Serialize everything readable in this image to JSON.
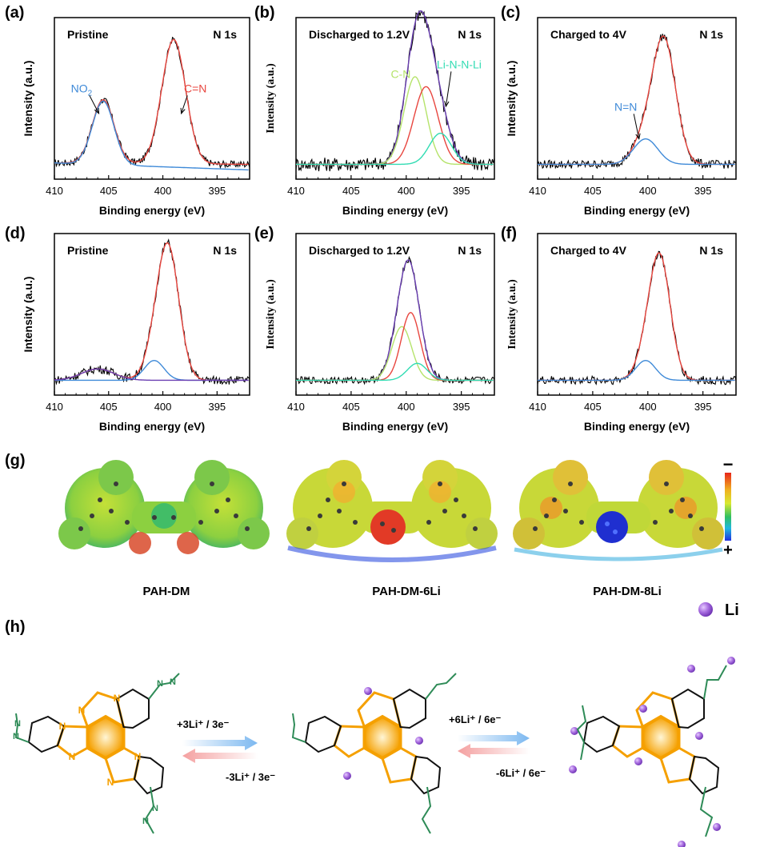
{
  "panel_labels": [
    "(a)",
    "(b)",
    "(c)",
    "(d)",
    "(e)",
    "(f)",
    "(g)",
    "(h)"
  ],
  "shared_axes": {
    "xlabel": "Binding energy (eV)",
    "ylabel": "Intensity (a.u.)",
    "xticks": [
      410,
      405,
      400,
      395
    ],
    "xlim": [
      410,
      392
    ]
  },
  "colors": {
    "raw": "#000000",
    "envelope": "#6a3fb2",
    "red": "#e8463f",
    "blue": "#3f8ad8",
    "green": "#b5e36a",
    "cyan": "#32dcb3",
    "bg": "#3a3a3a",
    "nitrogen": "#2e8b57",
    "ring": "#f5a000",
    "li": "#a86de0"
  },
  "chart_data": [
    {
      "type": "line",
      "panel": "(a)",
      "title": "Pristine",
      "tag": "N 1s",
      "xlabel": "Binding energy (eV)",
      "ylabel": "Intensity (a.u.)",
      "xlim": [
        410,
        392
      ],
      "series": [
        {
          "name": "raw",
          "kind": "noisy",
          "baseline": 0.05,
          "baseline_end": 0.04,
          "noise": 0.025,
          "peaks": [
            {
              "center": 405.5,
              "amp": 0.45,
              "sigma": 1.0
            },
            {
              "center": 399.0,
              "amp": 0.88,
              "sigma": 1.1
            }
          ]
        },
        {
          "name": "fit-total",
          "color": "red",
          "baseline": 0.05,
          "baseline_end": 0.04,
          "peaks": [
            {
              "center": 405.5,
              "amp": 0.45,
              "sigma": 1.0
            },
            {
              "center": 399.0,
              "amp": 0.88,
              "sigma": 1.1
            }
          ]
        },
        {
          "name": "NO2",
          "color": "blue",
          "baseline": 0.05,
          "baseline_end": 0.0,
          "peaks": [
            {
              "center": 405.5,
              "amp": 0.45,
              "sigma": 1.0
            }
          ]
        }
      ],
      "annotations": [
        {
          "text": "NO",
          "sub": "2",
          "x": 407.5,
          "y": 0.55,
          "color": "blue",
          "arrow_to": [
            405.9,
            0.4
          ]
        },
        {
          "text": "C=N",
          "x": 397.0,
          "y": 0.55,
          "color": "red",
          "arrow_to": [
            398.3,
            0.4
          ]
        }
      ]
    },
    {
      "type": "line",
      "panel": "(b)",
      "title": "Discharged to 1.2V",
      "tag": "N 1s",
      "xlabel": "Binding energy (eV)",
      "ylabel": "Intensity (a.u.)",
      "xlim": [
        410,
        392
      ],
      "series": [
        {
          "name": "raw",
          "kind": "noisy",
          "baseline": 0.04,
          "noise": 0.05,
          "peaks": [
            {
              "center": 399.2,
              "amp": 0.62,
              "sigma": 1.0
            },
            {
              "center": 398.2,
              "amp": 0.55,
              "sigma": 1.1
            },
            {
              "center": 396.9,
              "amp": 0.22,
              "sigma": 1.0
            }
          ]
        },
        {
          "name": "fit-total",
          "color": "envelope",
          "baseline": 0.04,
          "peaks": [
            {
              "center": 399.2,
              "amp": 0.62,
              "sigma": 1.0
            },
            {
              "center": 398.2,
              "amp": 0.55,
              "sigma": 1.1
            },
            {
              "center": 396.9,
              "amp": 0.22,
              "sigma": 1.0
            }
          ]
        },
        {
          "name": "C-N",
          "color": "green",
          "baseline": 0.04,
          "peaks": [
            {
              "center": 399.2,
              "amp": 0.62,
              "sigma": 1.0
            }
          ]
        },
        {
          "name": "peak-red",
          "color": "red",
          "baseline": 0.04,
          "peaks": [
            {
              "center": 398.2,
              "amp": 0.55,
              "sigma": 1.1
            }
          ]
        },
        {
          "name": "Li-N-N-Li",
          "color": "cyan",
          "baseline": 0.04,
          "peaks": [
            {
              "center": 396.9,
              "amp": 0.22,
              "sigma": 1.0
            }
          ]
        }
      ],
      "annotations": [
        {
          "text": "C-N",
          "x": 400.5,
          "y": 0.65,
          "color": "green"
        },
        {
          "text": "Li-N-N-Li",
          "x": 395.2,
          "y": 0.72,
          "color": "cyan",
          "arrow_to": [
            396.4,
            0.45
          ]
        }
      ]
    },
    {
      "type": "line",
      "panel": "(c)",
      "title": "Charged to 4V",
      "tag": "N 1s",
      "xlabel": "Binding energy (eV)",
      "ylabel": "Intensity (a.u.)",
      "xlim": [
        410,
        392
      ],
      "series": [
        {
          "name": "raw",
          "kind": "noisy",
          "baseline": 0.04,
          "noise": 0.03,
          "peaks": [
            {
              "center": 398.5,
              "amp": 0.85,
              "sigma": 1.05
            },
            {
              "center": 400.2,
              "amp": 0.18,
              "sigma": 1.1
            }
          ]
        },
        {
          "name": "fit-total",
          "color": "red",
          "baseline": 0.04,
          "peaks": [
            {
              "center": 398.5,
              "amp": 0.85,
              "sigma": 1.05
            },
            {
              "center": 400.2,
              "amp": 0.18,
              "sigma": 1.1
            }
          ]
        },
        {
          "name": "N=N",
          "color": "blue",
          "baseline": 0.04,
          "peaks": [
            {
              "center": 400.2,
              "amp": 0.18,
              "sigma": 1.1
            }
          ]
        }
      ],
      "annotations": [
        {
          "text": "N=N",
          "x": 402.0,
          "y": 0.42,
          "color": "blue",
          "arrow_to": [
            400.8,
            0.22
          ]
        }
      ]
    },
    {
      "type": "line",
      "panel": "(d)",
      "title": "Pristine",
      "tag": "N 1s",
      "xlabel": "Binding energy (eV)",
      "ylabel": "Intensity (a.u.)",
      "xlim": [
        410,
        392
      ],
      "series": [
        {
          "name": "raw",
          "kind": "noisy",
          "baseline": 0.04,
          "noise": 0.03,
          "peaks": [
            {
              "center": 399.5,
              "amp": 0.92,
              "sigma": 1.0
            },
            {
              "center": 400.8,
              "amp": 0.14,
              "sigma": 0.9
            },
            {
              "center": 406.0,
              "amp": 0.08,
              "sigma": 1.5
            }
          ]
        },
        {
          "name": "fit-total",
          "color": "red",
          "baseline": 0.04,
          "peaks": [
            {
              "center": 399.5,
              "amp": 0.92,
              "sigma": 1.0
            },
            {
              "center": 400.8,
              "amp": 0.14,
              "sigma": 0.9
            },
            {
              "center": 406.0,
              "amp": 0.08,
              "sigma": 1.5
            }
          ]
        },
        {
          "name": "peak-cyan",
          "color": "blue",
          "baseline": 0.04,
          "peaks": [
            {
              "center": 400.8,
              "amp": 0.14,
              "sigma": 0.9
            }
          ]
        },
        {
          "name": "peak-violet",
          "color": "envelope",
          "baseline": 0.04,
          "peaks": [
            {
              "center": 406.0,
              "amp": 0.08,
              "sigma": 1.5
            }
          ]
        }
      ],
      "annotations": []
    },
    {
      "type": "line",
      "panel": "(e)",
      "title": "Discharged to 1.2V",
      "tag": "N 1s",
      "xlabel": "Binding energy (eV)",
      "ylabel": "Intensity (a.u.)",
      "xlim": [
        410,
        392
      ],
      "series": [
        {
          "name": "raw",
          "kind": "noisy",
          "baseline": 0.04,
          "noise": 0.025,
          "peaks": [
            {
              "center": 400.4,
              "amp": 0.38,
              "sigma": 0.9
            },
            {
              "center": 399.6,
              "amp": 0.48,
              "sigma": 0.85
            },
            {
              "center": 399.0,
              "amp": 0.12,
              "sigma": 0.9
            }
          ]
        },
        {
          "name": "fit-total",
          "color": "envelope",
          "baseline": 0.04,
          "peaks": [
            {
              "center": 400.4,
              "amp": 0.38,
              "sigma": 0.9
            },
            {
              "center": 399.6,
              "amp": 0.48,
              "sigma": 0.85
            },
            {
              "center": 399.0,
              "amp": 0.12,
              "sigma": 0.9
            }
          ]
        },
        {
          "name": "peak-green",
          "color": "green",
          "baseline": 0.04,
          "peaks": [
            {
              "center": 400.4,
              "amp": 0.38,
              "sigma": 0.9
            }
          ]
        },
        {
          "name": "peak-red",
          "color": "red",
          "baseline": 0.04,
          "peaks": [
            {
              "center": 399.6,
              "amp": 0.48,
              "sigma": 0.85
            }
          ]
        },
        {
          "name": "peak-cyan",
          "color": "cyan",
          "baseline": 0.04,
          "peaks": [
            {
              "center": 399.0,
              "amp": 0.12,
              "sigma": 0.9
            }
          ]
        }
      ],
      "annotations": []
    },
    {
      "type": "line",
      "panel": "(f)",
      "title": "Charged to 4V",
      "tag": "N 1s",
      "xlabel": "Binding energy (eV)",
      "ylabel": "Intensity (a.u.)",
      "xlim": [
        410,
        392
      ],
      "series": [
        {
          "name": "raw",
          "kind": "noisy",
          "baseline": 0.04,
          "noise": 0.03,
          "peaks": [
            {
              "center": 398.9,
              "amp": 0.85,
              "sigma": 0.95
            },
            {
              "center": 400.2,
              "amp": 0.14,
              "sigma": 0.9
            }
          ]
        },
        {
          "name": "fit-total",
          "color": "red",
          "baseline": 0.04,
          "peaks": [
            {
              "center": 398.9,
              "amp": 0.85,
              "sigma": 0.95
            },
            {
              "center": 400.2,
              "amp": 0.14,
              "sigma": 0.9
            }
          ]
        },
        {
          "name": "peak-blue",
          "color": "blue",
          "baseline": 0.04,
          "peaks": [
            {
              "center": 400.2,
              "amp": 0.14,
              "sigma": 0.9
            }
          ]
        }
      ],
      "annotations": []
    }
  ],
  "esp": {
    "molecules": [
      {
        "label": "PAH-DM",
        "core": "#c8d830"
      },
      {
        "label": "PAH-DM-6Li",
        "core": "#e23a26"
      },
      {
        "label": "PAH-DM-8Li",
        "core": "#1f2fd0"
      }
    ],
    "scale_top": "−",
    "scale_bottom": "+",
    "li_legend": "Li"
  },
  "reaction": {
    "step1_forward": "+3Li⁺ / 3e⁻",
    "step1_reverse": "-3Li⁺ / 3e⁻",
    "step2_forward": "+6Li⁺ / 6e⁻",
    "step2_reverse": "-6Li⁺ / 6e⁻",
    "atom_symbol": "N"
  }
}
